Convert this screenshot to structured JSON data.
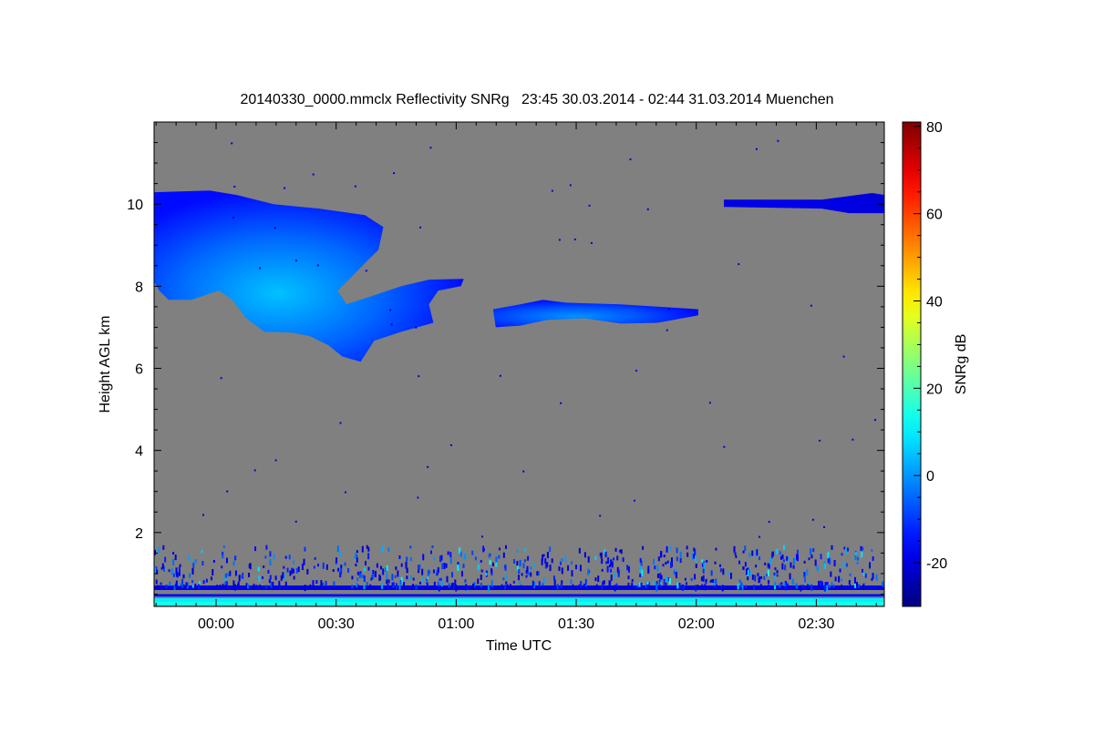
{
  "chart_data": {
    "type": "heatmap",
    "title": "20140330_0000.mmclx Reflectivity SNRg   23:45 30.03.2014 - 02:44 31.03.2014 Muenchen",
    "xlabel": "Time UTC",
    "ylabel": "Height AGL km",
    "colorbar_label": "SNRg dB",
    "x_unit": "minutes after 00:00 UTC",
    "xlim": [
      -15.5,
      167
    ],
    "ylim": [
      0.2,
      12.0
    ],
    "clim": [
      -30,
      81
    ],
    "colormap": "jet",
    "background_color": "#808080",
    "x_ticks": [
      {
        "value": 0,
        "label": "00:00"
      },
      {
        "value": 30,
        "label": "00:30"
      },
      {
        "value": 60,
        "label": "01:00"
      },
      {
        "value": 90,
        "label": "01:30"
      },
      {
        "value": 120,
        "label": "02:00"
      },
      {
        "value": 150,
        "label": "02:30"
      }
    ],
    "y_ticks": [
      {
        "value": 2,
        "label": "2"
      },
      {
        "value": 4,
        "label": "4"
      },
      {
        "value": 6,
        "label": "6"
      },
      {
        "value": 8,
        "label": "8"
      },
      {
        "value": 10,
        "label": "10"
      }
    ],
    "colorbar_ticks": [
      {
        "value": -20,
        "label": "-20"
      },
      {
        "value": 0,
        "label": "0"
      },
      {
        "value": 20,
        "label": "20"
      },
      {
        "value": 40,
        "label": "40"
      },
      {
        "value": 60,
        "label": "60"
      },
      {
        "value": 80,
        "label": "80"
      }
    ],
    "features": [
      {
        "name": "cirrus-cloud-main",
        "snr_edge": -15,
        "snr_core": 5,
        "outline": [
          [
            -15.5,
            10.29
          ],
          [
            -1.6,
            10.33
          ],
          [
            5.3,
            10.22
          ],
          [
            14.4,
            10.0
          ],
          [
            25.8,
            9.89
          ],
          [
            37.2,
            9.73
          ],
          [
            41.8,
            9.44
          ],
          [
            40.6,
            8.89
          ],
          [
            37.2,
            8.56
          ],
          [
            33.8,
            8.22
          ],
          [
            30.4,
            7.89
          ],
          [
            32.6,
            7.56
          ],
          [
            39.5,
            7.78
          ],
          [
            46.3,
            8.0
          ],
          [
            53.2,
            8.16
          ],
          [
            61.9,
            8.18
          ],
          [
            61.2,
            8.0
          ],
          [
            55.5,
            7.89
          ],
          [
            53.2,
            7.56
          ],
          [
            54.3,
            7.11
          ],
          [
            46.3,
            6.89
          ],
          [
            39.5,
            6.67
          ],
          [
            36.1,
            6.16
          ],
          [
            31.5,
            6.29
          ],
          [
            28.1,
            6.56
          ],
          [
            23.5,
            6.78
          ],
          [
            18.9,
            6.87
          ],
          [
            12.1,
            6.89
          ],
          [
            7.5,
            7.22
          ],
          [
            4.1,
            7.67
          ],
          [
            0.7,
            7.89
          ],
          [
            -6.2,
            7.67
          ],
          [
            -11.9,
            7.67
          ],
          [
            -14.2,
            7.89
          ],
          [
            -15.5,
            8.11
          ]
        ]
      },
      {
        "name": "cloud-layer-7km",
        "snr_edge": -15,
        "snr_core": 0,
        "outline": [
          [
            69.2,
            7.44
          ],
          [
            76.0,
            7.56
          ],
          [
            81.7,
            7.67
          ],
          [
            87.4,
            7.6
          ],
          [
            101.1,
            7.56
          ],
          [
            120.5,
            7.44
          ],
          [
            120.5,
            7.29
          ],
          [
            110.3,
            7.11
          ],
          [
            101.1,
            7.09
          ],
          [
            92.0,
            7.22
          ],
          [
            82.9,
            7.18
          ],
          [
            76.0,
            7.04
          ],
          [
            69.9,
            7.0
          ]
        ]
      },
      {
        "name": "cloud-layer-10km",
        "snr_edge": -20,
        "snr_core": -18,
        "outline": [
          [
            126.9,
            10.11
          ],
          [
            151.4,
            10.11
          ],
          [
            163.9,
            10.27
          ],
          [
            167.4,
            10.22
          ],
          [
            167.4,
            9.78
          ],
          [
            158.2,
            9.78
          ],
          [
            151.4,
            9.89
          ],
          [
            126.9,
            9.93
          ]
        ]
      }
    ],
    "bands": [
      {
        "name": "band-0.65km",
        "t": [
          -15.5,
          167
        ],
        "h": [
          0.6,
          0.71
        ],
        "snr": -18
      },
      {
        "name": "band-0.45km",
        "t": [
          -15.5,
          167
        ],
        "h": [
          0.44,
          0.5
        ],
        "snr": -15
      },
      {
        "name": "band-0.35km",
        "t": [
          -15.5,
          167
        ],
        "h": [
          0.32,
          0.4
        ],
        "snr": 10
      },
      {
        "name": "band-0.25km",
        "t": [
          -15.5,
          167
        ],
        "h": [
          0.22,
          0.32
        ],
        "snr": 14
      }
    ],
    "clutter_top_km": 1.7
  }
}
